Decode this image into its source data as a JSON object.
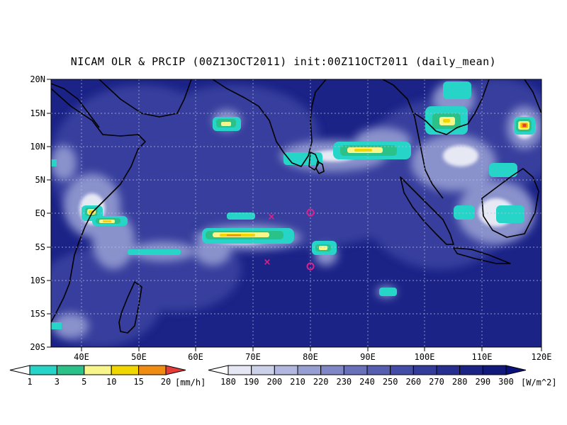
{
  "title": "NICAM OLR & PRCIP (00Z13OCT2011) init:00Z11OCT2011 (daily_mean)",
  "axes": {
    "lat_labels": [
      "20N",
      "15N",
      "10N",
      "5N",
      "EQ",
      "5S",
      "10S",
      "15S",
      "20S"
    ],
    "lon_labels": [
      "40E",
      "50E",
      "60E",
      "70E",
      "80E",
      "90E",
      "100E",
      "110E",
      "120E"
    ]
  },
  "precip_legend": {
    "values": [
      "1",
      "3",
      "5",
      "10",
      "15",
      "20"
    ],
    "unit": "[mm/h]",
    "colors": [
      "#ffffff",
      "#27d5c8",
      "#2bc28a",
      "#f8f58a",
      "#f2d600",
      "#f08c12",
      "#e43b3b"
    ]
  },
  "olr_legend": {
    "values": [
      "180",
      "190",
      "200",
      "210",
      "220",
      "230",
      "240",
      "250",
      "260",
      "270",
      "280",
      "290",
      "300"
    ],
    "unit": "[W/m^2]",
    "colors": [
      "#ffffff",
      "#e5e8f4",
      "#ccd1ea",
      "#b1b7de",
      "#979ed2",
      "#7f87c6",
      "#6971bb",
      "#555eb0",
      "#434ca6",
      "#333c9b",
      "#262f91",
      "#1b2387",
      "#11197d",
      "#0a117a"
    ]
  },
  "markers": {
    "cross_color": "#e0208c",
    "circle_color": "#e0208c"
  }
}
